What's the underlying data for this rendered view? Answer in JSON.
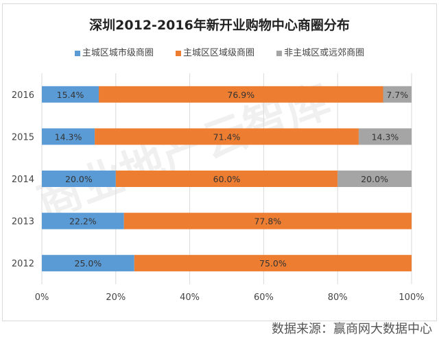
{
  "chart_data": {
    "type": "bar",
    "orientation": "horizontal",
    "stacked": "percent",
    "title": "深圳2012-2016年新开业购物中心商圈分布",
    "categories": [
      "2016",
      "2015",
      "2014",
      "2013",
      "2012"
    ],
    "series": [
      {
        "name": "主城区城市级商圈",
        "color": "#5b9bd5",
        "values": [
          15.4,
          14.3,
          20.0,
          22.2,
          25.0
        ],
        "labels": [
          "15.4%",
          "14.3%",
          "20.0%",
          "22.2%",
          "25.0%"
        ]
      },
      {
        "name": "主城区区域级商圈",
        "color": "#ed7d31",
        "values": [
          76.9,
          71.4,
          60.0,
          77.8,
          75.0
        ],
        "labels": [
          "76.9%",
          "71.4%",
          "60.0%",
          "77.8%",
          "75.0%"
        ]
      },
      {
        "name": "非主城区或远郊商圈",
        "color": "#a5a5a5",
        "values": [
          7.7,
          14.3,
          20.0,
          0,
          0
        ],
        "labels": [
          "7.7%",
          "14.3%",
          "20.0%",
          "",
          ""
        ]
      }
    ],
    "xlim": [
      0,
      100
    ],
    "xticks": [
      "0%",
      "20%",
      "40%",
      "60%",
      "80%",
      "100%"
    ],
    "grid": "vertical",
    "legend": "top"
  },
  "source": "数据来源：赢商网大数据中心",
  "watermark": "商业地产云智库"
}
